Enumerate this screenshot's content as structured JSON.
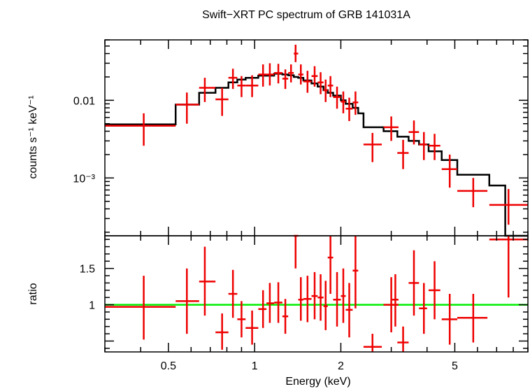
{
  "chart_data": [
    {
      "panel": "spectrum",
      "type": "line",
      "title": "Swift−XRT PC spectrum of GRB 141031A",
      "xlabel": "Energy (keV)",
      "ylabel": "counts s⁻¹ keV⁻¹",
      "xscale": "log",
      "yscale": "log",
      "xlim": [
        0.3,
        9.0
      ],
      "ylim": [
        0.00018,
        0.06
      ],
      "y_tick_labels": [
        {
          "value": 0.01,
          "label": "0.01"
        },
        {
          "value": 0.001,
          "label": "10⁻³"
        }
      ],
      "data_color": "#ee0000",
      "model_color": "#000000",
      "data": [
        {
          "x": 0.41,
          "xlo": 0.3,
          "xhi": 0.53,
          "y": 0.0047,
          "ylo": 0.0026,
          "yhi": 0.0068
        },
        {
          "x": 0.58,
          "xlo": 0.53,
          "xhi": 0.64,
          "y": 0.0088,
          "ylo": 0.005,
          "yhi": 0.0126
        },
        {
          "x": 0.67,
          "xlo": 0.64,
          "xhi": 0.73,
          "y": 0.0145,
          "ylo": 0.0095,
          "yhi": 0.0195
        },
        {
          "x": 0.77,
          "xlo": 0.73,
          "xhi": 0.81,
          "y": 0.0103,
          "ylo": 0.0063,
          "yhi": 0.0145
        },
        {
          "x": 0.84,
          "xlo": 0.81,
          "xhi": 0.87,
          "y": 0.0195,
          "ylo": 0.014,
          "yhi": 0.0255
        },
        {
          "x": 0.9,
          "xlo": 0.87,
          "xhi": 0.93,
          "y": 0.0155,
          "ylo": 0.011,
          "yhi": 0.0205
        },
        {
          "x": 0.98,
          "xlo": 0.93,
          "xhi": 1.03,
          "y": 0.0155,
          "ylo": 0.011,
          "yhi": 0.021
        },
        {
          "x": 1.07,
          "xlo": 1.03,
          "xhi": 1.1,
          "y": 0.0215,
          "ylo": 0.015,
          "yhi": 0.029
        },
        {
          "x": 1.13,
          "xlo": 1.1,
          "xhi": 1.17,
          "y": 0.0215,
          "ylo": 0.0155,
          "yhi": 0.03
        },
        {
          "x": 1.21,
          "xlo": 1.17,
          "xhi": 1.25,
          "y": 0.0225,
          "ylo": 0.0165,
          "yhi": 0.0295
        },
        {
          "x": 1.28,
          "xlo": 1.25,
          "xhi": 1.31,
          "y": 0.019,
          "ylo": 0.014,
          "yhi": 0.025
        },
        {
          "x": 1.34,
          "xlo": 1.31,
          "xhi": 1.37,
          "y": 0.0225,
          "ylo": 0.017,
          "yhi": 0.029
        },
        {
          "x": 1.39,
          "xlo": 1.37,
          "xhi": 1.42,
          "y": 0.04,
          "ylo": 0.031,
          "yhi": 0.052
        },
        {
          "x": 1.45,
          "xlo": 1.42,
          "xhi": 1.48,
          "y": 0.0215,
          "ylo": 0.016,
          "yhi": 0.029
        },
        {
          "x": 1.53,
          "xlo": 1.48,
          "xhi": 1.58,
          "y": 0.0175,
          "ylo": 0.0125,
          "yhi": 0.024
        },
        {
          "x": 1.62,
          "xlo": 1.58,
          "xhi": 1.66,
          "y": 0.0205,
          "ylo": 0.015,
          "yhi": 0.0275
        },
        {
          "x": 1.7,
          "xlo": 1.66,
          "xhi": 1.74,
          "y": 0.017,
          "ylo": 0.012,
          "yhi": 0.023
        },
        {
          "x": 1.77,
          "xlo": 1.74,
          "xhi": 1.8,
          "y": 0.0135,
          "ylo": 0.0095,
          "yhi": 0.0185
        },
        {
          "x": 1.84,
          "xlo": 1.8,
          "xhi": 1.88,
          "y": 0.0155,
          "ylo": 0.011,
          "yhi": 0.0205
        },
        {
          "x": 1.94,
          "xlo": 1.88,
          "xhi": 2.0,
          "y": 0.011,
          "ylo": 0.0078,
          "yhi": 0.015
        },
        {
          "x": 2.04,
          "xlo": 2.0,
          "xhi": 2.08,
          "y": 0.0096,
          "ylo": 0.0068,
          "yhi": 0.013
        },
        {
          "x": 2.14,
          "xlo": 2.08,
          "xhi": 2.2,
          "y": 0.0078,
          "ylo": 0.0054,
          "yhi": 0.0108
        },
        {
          "x": 2.25,
          "xlo": 2.2,
          "xhi": 2.3,
          "y": 0.0094,
          "ylo": 0.0065,
          "yhi": 0.013
        },
        {
          "x": 2.58,
          "xlo": 2.4,
          "xhi": 2.78,
          "y": 0.0027,
          "ylo": 0.0016,
          "yhi": 0.0038
        },
        {
          "x": 3.0,
          "xlo": 2.82,
          "xhi": 3.18,
          "y": 0.0045,
          "ylo": 0.003,
          "yhi": 0.0062
        },
        {
          "x": 3.3,
          "xlo": 3.15,
          "xhi": 3.45,
          "y": 0.0021,
          "ylo": 0.0013,
          "yhi": 0.0031
        },
        {
          "x": 3.6,
          "xlo": 3.45,
          "xhi": 3.75,
          "y": 0.0039,
          "ylo": 0.0027,
          "yhi": 0.0055
        },
        {
          "x": 3.9,
          "xlo": 3.75,
          "xhi": 4.0,
          "y": 0.0027,
          "ylo": 0.0017,
          "yhi": 0.0039
        },
        {
          "x": 4.25,
          "xlo": 4.05,
          "xhi": 4.45,
          "y": 0.0026,
          "ylo": 0.0017,
          "yhi": 0.0037
        },
        {
          "x": 4.8,
          "xlo": 4.5,
          "xhi": 5.1,
          "y": 0.0013,
          "ylo": 0.00075,
          "yhi": 0.002
        },
        {
          "x": 5.8,
          "xlo": 5.1,
          "xhi": 6.5,
          "y": 0.00068,
          "ylo": 0.00042,
          "yhi": 0.001
        },
        {
          "x": 7.7,
          "xlo": 6.6,
          "xhi": 9.0,
          "y": 0.00045,
          "ylo": 0.00025,
          "yhi": 0.00072
        }
      ],
      "model_steps": [
        [
          0.3,
          0.0049
        ],
        [
          0.53,
          0.0088
        ],
        [
          0.64,
          0.0125
        ],
        [
          0.73,
          0.0145
        ],
        [
          0.81,
          0.017
        ],
        [
          0.87,
          0.0185
        ],
        [
          0.93,
          0.0195
        ],
        [
          1.03,
          0.0208
        ],
        [
          1.17,
          0.022
        ],
        [
          1.25,
          0.0215
        ],
        [
          1.31,
          0.021
        ],
        [
          1.37,
          0.02
        ],
        [
          1.42,
          0.0195
        ],
        [
          1.48,
          0.018
        ],
        [
          1.58,
          0.0165
        ],
        [
          1.66,
          0.015
        ],
        [
          1.74,
          0.0135
        ],
        [
          1.8,
          0.0125
        ],
        [
          1.88,
          0.0115
        ],
        [
          2.0,
          0.01
        ],
        [
          2.08,
          0.009
        ],
        [
          2.2,
          0.008
        ],
        [
          2.3,
          0.0068
        ],
        [
          2.4,
          0.0045
        ],
        [
          2.82,
          0.004
        ],
        [
          3.15,
          0.0034
        ],
        [
          3.45,
          0.003
        ],
        [
          3.75,
          0.0027
        ],
        [
          4.05,
          0.0022
        ],
        [
          4.5,
          0.0017
        ],
        [
          5.1,
          0.0011
        ],
        [
          6.6,
          0.0008
        ],
        [
          7.5,
          0.00017
        ]
      ],
      "model_end_x": 9.0
    },
    {
      "panel": "ratio",
      "type": "scatter",
      "xlabel": "Energy (keV)",
      "ylabel": "ratio",
      "xscale": "log",
      "yscale": "linear",
      "xlim": [
        0.3,
        9.0
      ],
      "ylim": [
        0.35,
        1.95
      ],
      "y_ticks": [
        1,
        1.5
      ],
      "y_tick_labels": [
        {
          "value": 1,
          "label": "1"
        },
        {
          "value": 1.5,
          "label": "1.5"
        }
      ],
      "x_ticks_major": [
        0.5,
        1,
        2,
        5
      ],
      "x_tick_labels": [
        {
          "value": 0.5,
          "label": "0.5"
        },
        {
          "value": 1,
          "label": "1"
        },
        {
          "value": 2,
          "label": "2"
        },
        {
          "value": 5,
          "label": "5"
        }
      ],
      "reference_value": 1.0,
      "reference_color": "#00ee00",
      "data": [
        {
          "x": 0.41,
          "xlo": 0.3,
          "xhi": 0.53,
          "y": 0.97,
          "ylo": 0.52,
          "yhi": 1.4
        },
        {
          "x": 0.58,
          "xlo": 0.53,
          "xhi": 0.64,
          "y": 1.05,
          "ylo": 0.6,
          "yhi": 1.5
        },
        {
          "x": 0.67,
          "xlo": 0.64,
          "xhi": 0.73,
          "y": 1.32,
          "ylo": 0.85,
          "yhi": 1.8
        },
        {
          "x": 0.77,
          "xlo": 0.73,
          "xhi": 0.81,
          "y": 0.62,
          "ylo": 0.38,
          "yhi": 0.88
        },
        {
          "x": 0.84,
          "xlo": 0.81,
          "xhi": 0.87,
          "y": 1.15,
          "ylo": 0.82,
          "yhi": 1.48
        },
        {
          "x": 0.9,
          "xlo": 0.87,
          "xhi": 0.93,
          "y": 0.8,
          "ylo": 0.55,
          "yhi": 1.05
        },
        {
          "x": 0.98,
          "xlo": 0.93,
          "xhi": 1.03,
          "y": 0.68,
          "ylo": 0.45,
          "yhi": 0.92
        },
        {
          "x": 1.07,
          "xlo": 1.03,
          "xhi": 1.1,
          "y": 0.94,
          "ylo": 0.68,
          "yhi": 1.2
        },
        {
          "x": 1.13,
          "xlo": 1.1,
          "xhi": 1.17,
          "y": 1.02,
          "ylo": 0.75,
          "yhi": 1.3
        },
        {
          "x": 1.21,
          "xlo": 1.17,
          "xhi": 1.25,
          "y": 1.03,
          "ylo": 0.75,
          "yhi": 1.31
        },
        {
          "x": 1.28,
          "xlo": 1.25,
          "xhi": 1.31,
          "y": 0.84,
          "ylo": 0.6,
          "yhi": 1.08
        },
        {
          "x": 1.39,
          "xlo": 1.37,
          "xhi": 1.42,
          "y": 1.95,
          "ylo": 1.5,
          "yhi": 2.4
        },
        {
          "x": 1.45,
          "xlo": 1.42,
          "xhi": 1.48,
          "y": 1.07,
          "ylo": 0.78,
          "yhi": 1.38
        },
        {
          "x": 1.53,
          "xlo": 1.48,
          "xhi": 1.58,
          "y": 1.08,
          "ylo": 0.76,
          "yhi": 1.4
        },
        {
          "x": 1.62,
          "xlo": 1.58,
          "xhi": 1.66,
          "y": 1.12,
          "ylo": 0.8,
          "yhi": 1.45
        },
        {
          "x": 1.7,
          "xlo": 1.66,
          "xhi": 1.74,
          "y": 1.1,
          "ylo": 0.78,
          "yhi": 1.42
        },
        {
          "x": 1.77,
          "xlo": 1.74,
          "xhi": 1.8,
          "y": 0.98,
          "ylo": 0.65,
          "yhi": 1.33
        },
        {
          "x": 1.84,
          "xlo": 1.8,
          "xhi": 1.88,
          "y": 1.65,
          "ylo": 1.15,
          "yhi": 2.15
        },
        {
          "x": 1.94,
          "xlo": 1.88,
          "xhi": 2.0,
          "y": 1.07,
          "ylo": 0.7,
          "yhi": 1.45
        },
        {
          "x": 2.04,
          "xlo": 2.0,
          "xhi": 2.08,
          "y": 1.12,
          "ylo": 0.75,
          "yhi": 1.5
        },
        {
          "x": 2.14,
          "xlo": 2.08,
          "xhi": 2.2,
          "y": 0.93,
          "ylo": 0.55,
          "yhi": 1.3
        },
        {
          "x": 2.25,
          "xlo": 2.2,
          "xhi": 2.3,
          "y": 1.47,
          "ylo": 0.95,
          "yhi": 2.0
        },
        {
          "x": 2.58,
          "xlo": 2.4,
          "xhi": 2.78,
          "y": 0.42,
          "ylo": 0.25,
          "yhi": 0.6
        },
        {
          "x": 3.0,
          "xlo": 2.82,
          "xhi": 3.18,
          "y": 1.0,
          "ylo": 0.62,
          "yhi": 1.38
        },
        {
          "x": 3.1,
          "xlo": 3.02,
          "xhi": 3.18,
          "y": 1.07,
          "ylo": 0.7,
          "yhi": 1.42
        },
        {
          "x": 3.3,
          "xlo": 3.15,
          "xhi": 3.45,
          "y": 0.48,
          "ylo": 0.28,
          "yhi": 0.7
        },
        {
          "x": 3.6,
          "xlo": 3.45,
          "xhi": 3.75,
          "y": 1.3,
          "ylo": 0.85,
          "yhi": 1.75
        },
        {
          "x": 3.9,
          "xlo": 3.75,
          "xhi": 4.0,
          "y": 0.95,
          "ylo": 0.6,
          "yhi": 1.3
        },
        {
          "x": 4.25,
          "xlo": 4.05,
          "xhi": 4.45,
          "y": 1.2,
          "ylo": 0.8,
          "yhi": 1.6
        },
        {
          "x": 4.8,
          "xlo": 4.5,
          "xhi": 5.1,
          "y": 0.8,
          "ylo": 0.45,
          "yhi": 1.15
        },
        {
          "x": 5.8,
          "xlo": 5.1,
          "xhi": 6.5,
          "y": 0.82,
          "ylo": 0.48,
          "yhi": 1.15
        },
        {
          "x": 7.7,
          "xlo": 6.6,
          "xhi": 9.0,
          "y": 1.9,
          "ylo": 1.1,
          "yhi": 2.7
        }
      ]
    }
  ]
}
